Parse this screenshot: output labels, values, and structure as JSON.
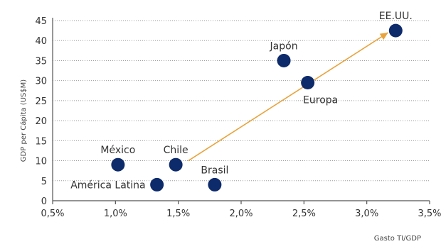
{
  "chart_data": {
    "type": "scatter",
    "title": "",
    "xlabel": "Gasto TI/GDP",
    "ylabel": "GDP per Cápita (US$M)",
    "xlim": [
      0.5,
      3.5
    ],
    "ylim": [
      0,
      45
    ],
    "x_ticks": [
      0.5,
      1.0,
      1.5,
      2.0,
      2.5,
      3.0,
      3.5
    ],
    "x_tick_labels": [
      "0,5%",
      "1,0%",
      "1,5%",
      "2,0%",
      "2,5%",
      "3,0%",
      "3,5%"
    ],
    "y_ticks": [
      0,
      5,
      10,
      15,
      20,
      25,
      30,
      35,
      40,
      45
    ],
    "y_tick_labels": [
      "0",
      "5",
      "10",
      "15",
      "20",
      "25",
      "30",
      "35",
      "40",
      "45"
    ],
    "grid": true,
    "points": [
      {
        "label": "México",
        "x": 1.02,
        "y": 9.0,
        "label_pos": "above"
      },
      {
        "label": "América Latina",
        "x": 1.33,
        "y": 4.0,
        "label_pos": "left"
      },
      {
        "label": "Chile",
        "x": 1.48,
        "y": 9.0,
        "label_pos": "above"
      },
      {
        "label": "Brasil",
        "x": 1.79,
        "y": 4.0,
        "label_pos": "above"
      },
      {
        "label": "Japón",
        "x": 2.34,
        "y": 35.0,
        "label_pos": "above"
      },
      {
        "label": "Europa",
        "x": 2.53,
        "y": 29.5,
        "label_pos": "below"
      },
      {
        "label": "EE.UU.",
        "x": 3.23,
        "y": 42.5,
        "label_pos": "above"
      }
    ],
    "trend_arrow": {
      "from": [
        1.58,
        10.0
      ],
      "to": [
        3.17,
        42.0
      ],
      "color": "#e8a33c"
    },
    "marker_color": "#0d2a6b"
  }
}
